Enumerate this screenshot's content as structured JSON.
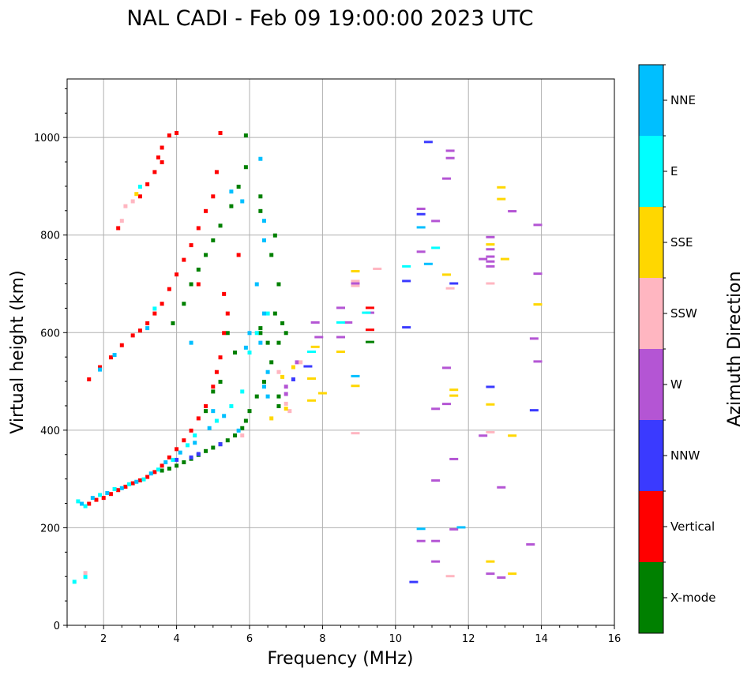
{
  "chart_data": {
    "type": "scatter",
    "title": "NAL CADI - Feb 09 19:00:00 2023 UTC",
    "xlabel": "Frequency (MHz)",
    "ylabel": "Virtual height (km)",
    "xlim": [
      1,
      16
    ],
    "ylim": [
      0,
      1120
    ],
    "xticks": [
      2,
      4,
      6,
      8,
      10,
      12,
      14,
      16
    ],
    "yticks": [
      0,
      200,
      400,
      600,
      800,
      1000
    ],
    "grid": true,
    "colorbar": {
      "label": "Azimuth Direction",
      "placement": "right",
      "categories": [
        {
          "name": "X-mode",
          "color": "#008000"
        },
        {
          "name": "Vertical",
          "color": "#ff0000"
        },
        {
          "name": "NNW",
          "color": "#3a3aff"
        },
        {
          "name": "W",
          "color": "#b455d4"
        },
        {
          "name": "SSW",
          "color": "#ffb6c1"
        },
        {
          "name": "SSE",
          "color": "#ffd700"
        },
        {
          "name": "E",
          "color": "#00ffff"
        },
        {
          "name": "NNE",
          "color": "#00bfff"
        }
      ]
    },
    "series": [
      {
        "name": "X-mode",
        "points": [
          [
            3.6,
            318
          ],
          [
            3.8,
            322
          ],
          [
            4,
            328
          ],
          [
            4.2,
            335
          ],
          [
            4.4,
            342
          ],
          [
            4.6,
            350
          ],
          [
            4.8,
            358
          ],
          [
            5,
            365
          ],
          [
            5.2,
            372
          ],
          [
            5.4,
            380
          ],
          [
            5.6,
            390
          ],
          [
            5.8,
            405
          ],
          [
            5.9,
            420
          ],
          [
            6,
            440
          ],
          [
            6.2,
            470
          ],
          [
            6.4,
            500
          ],
          [
            6.6,
            540
          ],
          [
            6.8,
            580
          ],
          [
            6.9,
            620
          ],
          [
            7,
            600
          ],
          [
            6.7,
            640
          ],
          [
            6.8,
            700
          ],
          [
            6.6,
            760
          ],
          [
            6.7,
            800
          ],
          [
            6.3,
            850
          ],
          [
            6.3,
            880
          ],
          [
            5.9,
            940
          ],
          [
            5.7,
            900
          ],
          [
            5.5,
            860
          ],
          [
            5.2,
            820
          ],
          [
            5,
            790
          ],
          [
            4.8,
            760
          ],
          [
            4.6,
            730
          ],
          [
            4.4,
            700
          ],
          [
            4.2,
            660
          ],
          [
            5.4,
            600
          ],
          [
            5.6,
            560
          ],
          [
            5.2,
            500
          ],
          [
            5,
            480
          ],
          [
            4.8,
            440
          ],
          [
            3.9,
            620
          ],
          [
            6.3,
            610
          ],
          [
            6.5,
            580
          ],
          [
            6.8,
            470
          ],
          [
            6.8,
            450
          ],
          [
            6.3,
            600
          ],
          [
            9.3,
            580
          ],
          [
            5.9,
            1005
          ]
        ]
      },
      {
        "name": "Vertical",
        "points": [
          [
            1.6,
            250
          ],
          [
            1.8,
            258
          ],
          [
            2,
            262
          ],
          [
            2.2,
            270
          ],
          [
            2.4,
            278
          ],
          [
            2.6,
            285
          ],
          [
            2.8,
            292
          ],
          [
            3,
            298
          ],
          [
            3.2,
            305
          ],
          [
            3.4,
            315
          ],
          [
            3.6,
            328
          ],
          [
            3.8,
            345
          ],
          [
            4,
            362
          ],
          [
            4.2,
            380
          ],
          [
            4.4,
            400
          ],
          [
            4.6,
            425
          ],
          [
            4.8,
            450
          ],
          [
            5,
            490
          ],
          [
            5.1,
            520
          ],
          [
            5.2,
            550
          ],
          [
            5.3,
            600
          ],
          [
            1.6,
            505
          ],
          [
            1.9,
            530
          ],
          [
            2.2,
            550
          ],
          [
            2.5,
            575
          ],
          [
            2.8,
            595
          ],
          [
            3,
            605
          ],
          [
            3.2,
            620
          ],
          [
            3.4,
            640
          ],
          [
            3.6,
            660
          ],
          [
            3.8,
            690
          ],
          [
            4,
            720
          ],
          [
            4.2,
            750
          ],
          [
            4.4,
            780
          ],
          [
            4.6,
            815
          ],
          [
            4.8,
            850
          ],
          [
            5,
            880
          ],
          [
            5.1,
            930
          ],
          [
            5.2,
            1010
          ],
          [
            2.4,
            815
          ],
          [
            3,
            880
          ],
          [
            3.2,
            905
          ],
          [
            3.4,
            930
          ],
          [
            3.5,
            960
          ],
          [
            3.6,
            980
          ],
          [
            3.8,
            1005
          ],
          [
            4,
            1010
          ],
          [
            3.6,
            950
          ],
          [
            9.3,
            650
          ],
          [
            9.3,
            605
          ],
          [
            5.3,
            680
          ],
          [
            5.4,
            640
          ],
          [
            4.6,
            700
          ],
          [
            5.7,
            760
          ]
        ]
      },
      {
        "name": "NNW",
        "points": [
          [
            4.4,
            345
          ],
          [
            4.6,
            352
          ],
          [
            5.2,
            372
          ],
          [
            7.2,
            505
          ],
          [
            10.3,
            705
          ],
          [
            10.3,
            610
          ],
          [
            10.9,
            990
          ],
          [
            10.5,
            88
          ],
          [
            11.6,
            700
          ],
          [
            13.8,
            440
          ],
          [
            12.6,
            488
          ],
          [
            7.6,
            530
          ],
          [
            10.7,
            842
          ],
          [
            4,
            340
          ]
        ]
      },
      {
        "name": "W",
        "points": [
          [
            7.8,
            620
          ],
          [
            7.9,
            590
          ],
          [
            8.5,
            650
          ],
          [
            8.5,
            590
          ],
          [
            8.7,
            620
          ],
          [
            8.9,
            700
          ],
          [
            9.3,
            640
          ],
          [
            10.7,
            853
          ],
          [
            10.7,
            765
          ],
          [
            11.1,
            828
          ],
          [
            11.1,
            443
          ],
          [
            11.1,
            296
          ],
          [
            11.1,
            130
          ],
          [
            11.4,
            915
          ],
          [
            11.4,
            527
          ],
          [
            11.4,
            453
          ],
          [
            11.5,
            972
          ],
          [
            11.5,
            957
          ],
          [
            11.6,
            340
          ],
          [
            11.6,
            196
          ],
          [
            12.4,
            750
          ],
          [
            12.6,
            795
          ],
          [
            12.6,
            770
          ],
          [
            12.6,
            755
          ],
          [
            12.6,
            745
          ],
          [
            12.6,
            735
          ],
          [
            12.4,
            388
          ],
          [
            12.6,
            105
          ],
          [
            12.9,
            282
          ],
          [
            12.9,
            97
          ],
          [
            13.2,
            848
          ],
          [
            13.9,
            820
          ],
          [
            13.9,
            720
          ],
          [
            13.8,
            587
          ],
          [
            13.9,
            540
          ],
          [
            13.7,
            165
          ],
          [
            10.7,
            172
          ],
          [
            11.1,
            172
          ],
          [
            7.3,
            540
          ],
          [
            7,
            490
          ],
          [
            7,
            475
          ]
        ]
      },
      {
        "name": "SSW",
        "points": [
          [
            2.5,
            830
          ],
          [
            2.6,
            860
          ],
          [
            2.8,
            870
          ],
          [
            1.5,
            108
          ],
          [
            5.8,
            390
          ],
          [
            6.8,
            520
          ],
          [
            8.9,
            705
          ],
          [
            8.9,
            695
          ],
          [
            9.5,
            730
          ],
          [
            11.5,
            690
          ],
          [
            11.5,
            100
          ],
          [
            12.6,
            700
          ],
          [
            12.6,
            395
          ],
          [
            8.9,
            393
          ],
          [
            7,
            455
          ],
          [
            7.4,
            540
          ],
          [
            7.1,
            440
          ]
        ]
      },
      {
        "name": "SSE",
        "points": [
          [
            2.9,
            885
          ],
          [
            6.6,
            425
          ],
          [
            7,
            445
          ],
          [
            6.9,
            510
          ],
          [
            7.2,
            530
          ],
          [
            7.7,
            460
          ],
          [
            7.7,
            505
          ],
          [
            7.8,
            570
          ],
          [
            8,
            475
          ],
          [
            8.5,
            560
          ],
          [
            8.9,
            725
          ],
          [
            8.9,
            490
          ],
          [
            11.4,
            718
          ],
          [
            11.6,
            482
          ],
          [
            11.6,
            470
          ],
          [
            12.6,
            780
          ],
          [
            12.6,
            452
          ],
          [
            12.6,
            130
          ],
          [
            12.9,
            897
          ],
          [
            12.9,
            873
          ],
          [
            13,
            750
          ],
          [
            13.2,
            105
          ],
          [
            13.2,
            388
          ],
          [
            13.9,
            657
          ]
        ]
      },
      {
        "name": "E",
        "points": [
          [
            1.3,
            255
          ],
          [
            1.5,
            245
          ],
          [
            1.9,
            268
          ],
          [
            2.3,
            280
          ],
          [
            2.7,
            290
          ],
          [
            3.1,
            300
          ],
          [
            3.5,
            320
          ],
          [
            3.9,
            340
          ],
          [
            4.3,
            370
          ],
          [
            4.5,
            390
          ],
          [
            5.1,
            420
          ],
          [
            5.5,
            450
          ],
          [
            5.8,
            480
          ],
          [
            6,
            560
          ],
          [
            6.2,
            600
          ],
          [
            3,
            900
          ],
          [
            3.4,
            650
          ],
          [
            1.2,
            90
          ],
          [
            1.5,
            100
          ],
          [
            6.5,
            640
          ],
          [
            7.7,
            560
          ],
          [
            9.2,
            640
          ],
          [
            11.1,
            773
          ],
          [
            10.3,
            735
          ],
          [
            8.5,
            620
          ]
        ]
      },
      {
        "name": "NNE",
        "points": [
          [
            1.4,
            250
          ],
          [
            1.7,
            262
          ],
          [
            2.1,
            272
          ],
          [
            2.5,
            282
          ],
          [
            2.9,
            295
          ],
          [
            3.3,
            312
          ],
          [
            3.7,
            335
          ],
          [
            4.1,
            355
          ],
          [
            4.5,
            375
          ],
          [
            4.9,
            405
          ],
          [
            5.3,
            430
          ],
          [
            5.7,
            400
          ],
          [
            5.9,
            570
          ],
          [
            6.3,
            580
          ],
          [
            6.5,
            520
          ],
          [
            6,
            600
          ],
          [
            6.4,
            640
          ],
          [
            6.4,
            830
          ],
          [
            6.4,
            790
          ],
          [
            6.3,
            957
          ],
          [
            6.2,
            700
          ],
          [
            5.8,
            870
          ],
          [
            5.5,
            890
          ],
          [
            4.4,
            580
          ],
          [
            5,
            440
          ],
          [
            1.9,
            525
          ],
          [
            2.3,
            555
          ],
          [
            3.2,
            610
          ],
          [
            10.7,
            815
          ],
          [
            11.8,
            200
          ],
          [
            10.7,
            197
          ],
          [
            6.5,
            470
          ],
          [
            6.4,
            490
          ],
          [
            8.9,
            510
          ],
          [
            10.9,
            740
          ]
        ]
      }
    ]
  }
}
